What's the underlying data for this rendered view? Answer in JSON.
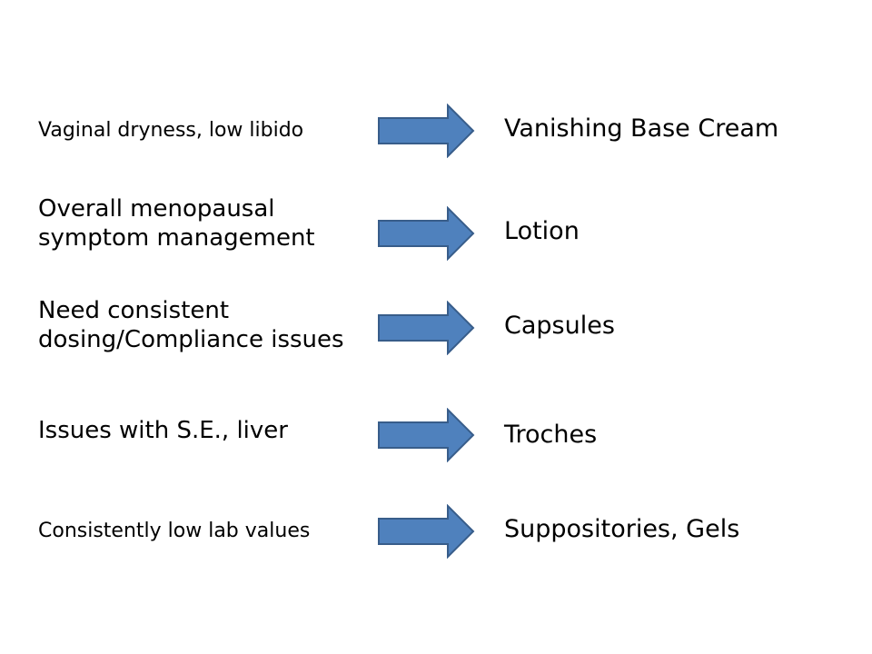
{
  "colors": {
    "arrow_fill": "#4F81BD",
    "arrow_stroke": "#385D8A",
    "text": "#000000",
    "background": "#FFFFFF"
  },
  "rows": [
    {
      "condition": [
        "Vaginal dryness, low libido"
      ],
      "formulation": "Vanishing Base Cream"
    },
    {
      "condition": [
        "Overall menopausal",
        "symptom management"
      ],
      "formulation": "Lotion"
    },
    {
      "condition": [
        "Need consistent",
        "dosing/Compliance issues"
      ],
      "formulation": "Capsules"
    },
    {
      "condition": [
        "Issues with S.E., liver"
      ],
      "formulation": "Troches"
    },
    {
      "condition": [
        "Consistently low lab values"
      ],
      "formulation": "Suppositories, Gels"
    }
  ]
}
